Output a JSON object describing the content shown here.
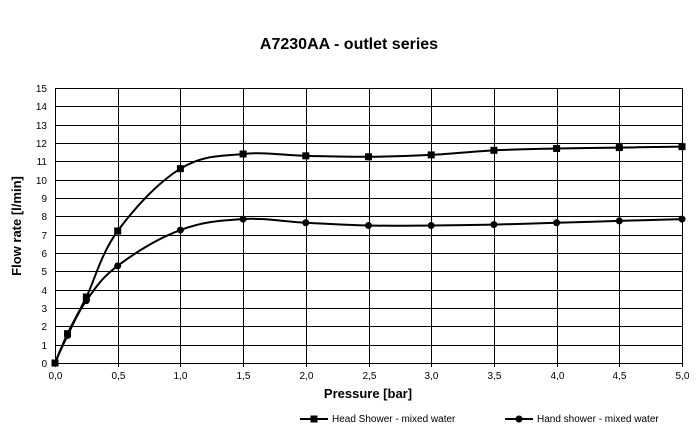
{
  "chart_data": {
    "type": "line",
    "title": "A7230AA - outlet series",
    "xlabel": "Pressure [bar]",
    "ylabel": "Flow rate [l/min]",
    "xlim": [
      0,
      5
    ],
    "ylim": [
      0,
      15
    ],
    "x_ticks": [
      "0,0",
      "0,5",
      "1,0",
      "1,5",
      "2,0",
      "2,5",
      "3,0",
      "3,5",
      "4,0",
      "4,5",
      "5,0"
    ],
    "y_ticks": [
      "0",
      "1",
      "2",
      "3",
      "4",
      "5",
      "6",
      "7",
      "8",
      "9",
      "10",
      "11",
      "12",
      "13",
      "14",
      "15"
    ],
    "grid": true,
    "legend_position": "bottom",
    "series": [
      {
        "name": "Head Shower - mixed water",
        "marker": "square",
        "x": [
          0,
          0.1,
          0.25,
          0.5,
          1.0,
          1.5,
          2.0,
          2.5,
          3.0,
          3.5,
          4.0,
          4.5,
          5.0
        ],
        "values": [
          0,
          1.6,
          3.6,
          7.2,
          10.6,
          11.4,
          11.3,
          11.25,
          11.35,
          11.6,
          11.7,
          11.75,
          11.8
        ]
      },
      {
        "name": "Hand shower - mixed water",
        "marker": "circle",
        "x": [
          0,
          0.1,
          0.25,
          0.5,
          1.0,
          1.5,
          2.0,
          2.5,
          3.0,
          3.5,
          4.0,
          4.5,
          5.0
        ],
        "values": [
          0,
          1.5,
          3.4,
          5.3,
          7.25,
          7.85,
          7.65,
          7.5,
          7.5,
          7.55,
          7.65,
          7.75,
          7.85
        ]
      }
    ]
  }
}
